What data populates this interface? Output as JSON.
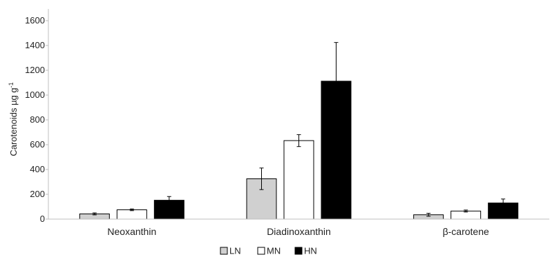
{
  "chart_data": {
    "type": "bar",
    "categories": [
      "Neoxanthin",
      "Diadinoxanthin",
      "β-carotene"
    ],
    "ylabel": "Carotenoids µg g",
    "ylabel_superscript": "-1",
    "ylim": [
      0,
      1600
    ],
    "yticks": [
      "0",
      "200",
      "400",
      "600",
      "800",
      "1000",
      "1200",
      "1400",
      "1600"
    ],
    "grid": false,
    "legend_position": "bottom",
    "series": [
      {
        "name": "LN",
        "color": "#d0d0d0",
        "values": [
          42,
          325,
          35
        ],
        "errors": [
          8,
          87,
          12
        ]
      },
      {
        "name": "MN",
        "color": "#ffffff",
        "values": [
          75,
          633,
          65
        ],
        "errors": [
          7,
          48,
          8
        ]
      },
      {
        "name": "HN",
        "color": "#000000",
        "values": [
          152,
          1112,
          130
        ],
        "errors": [
          30,
          312,
          32
        ]
      }
    ]
  }
}
